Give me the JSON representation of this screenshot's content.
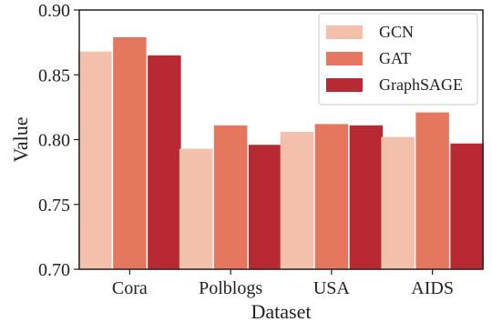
{
  "chart_data": {
    "type": "bar",
    "title": "",
    "xlabel": "Dataset",
    "ylabel": "Value",
    "categories": [
      "Cora",
      "Polblogs",
      "USA",
      "AIDS"
    ],
    "series": [
      {
        "name": "GCN",
        "color": "#f3c0ac",
        "values": [
          0.868,
          0.793,
          0.806,
          0.802
        ]
      },
      {
        "name": "GAT",
        "color": "#e5775f",
        "values": [
          0.879,
          0.811,
          0.812,
          0.821
        ]
      },
      {
        "name": "GraphSAGE",
        "color": "#b82a33",
        "values": [
          0.865,
          0.796,
          0.811,
          0.797
        ]
      }
    ],
    "ylim": [
      0.7,
      0.9
    ],
    "yticks": [
      "0.70",
      "0.75",
      "0.80",
      "0.85",
      "0.90"
    ],
    "grid": false,
    "legend_position": "top-right"
  }
}
